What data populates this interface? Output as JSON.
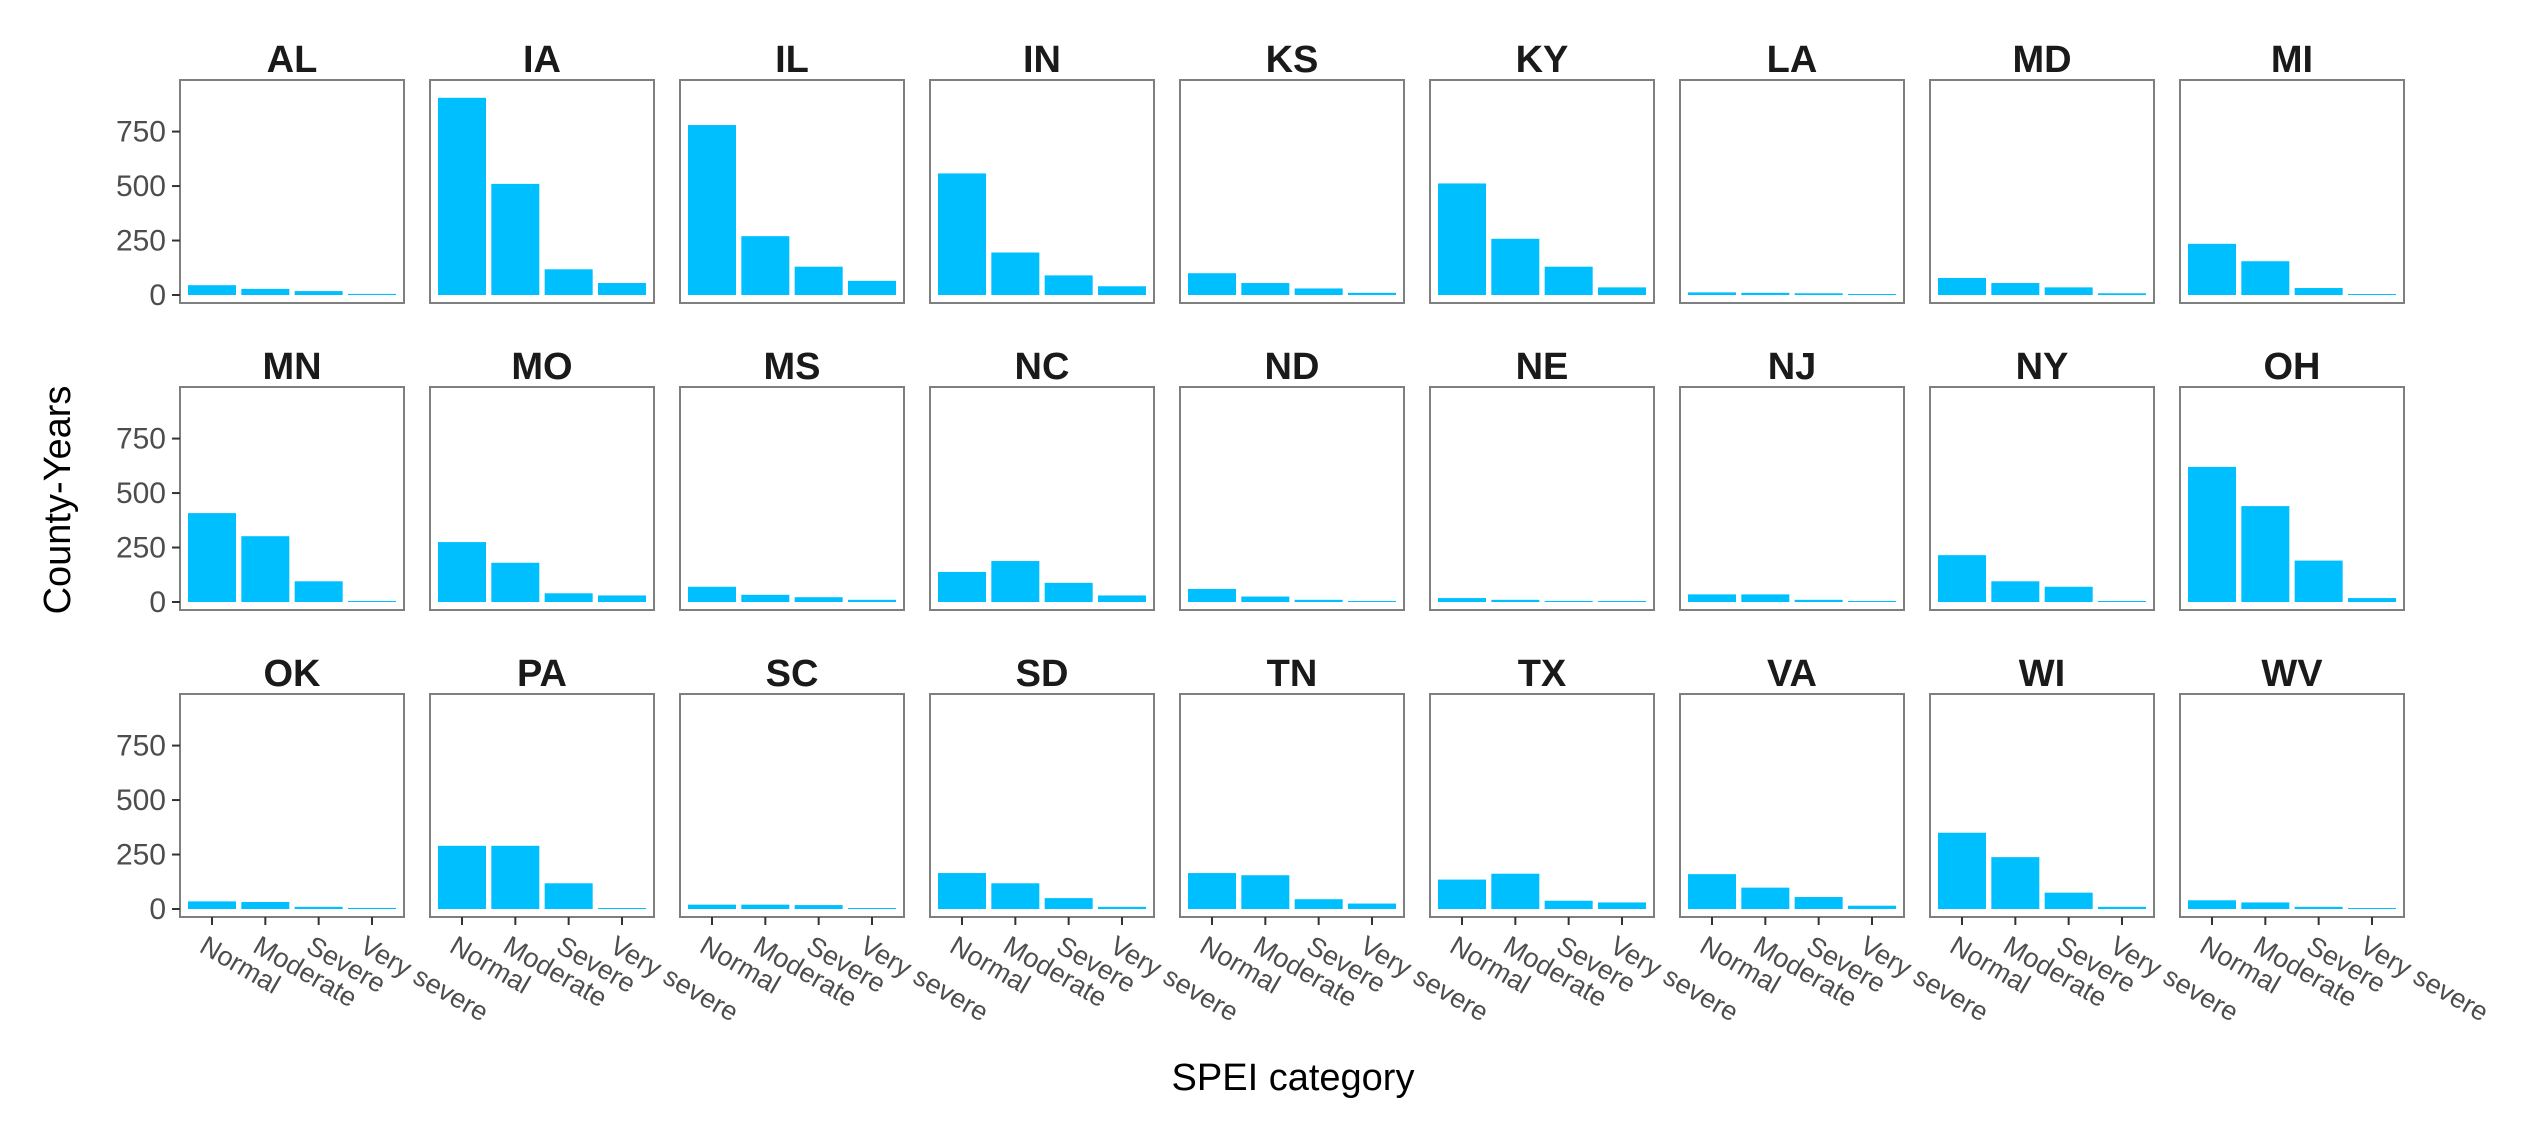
{
  "chart_data": {
    "type": "bar",
    "layout": "facet-grid",
    "facet_cols": 9,
    "xlabel": "SPEI category",
    "ylabel": "County-Years",
    "categories": [
      "Normal",
      "Moderate",
      "Severe",
      "Very severe"
    ],
    "ylim": [
      0,
      950
    ],
    "yticks": [
      0,
      250,
      500,
      750
    ],
    "bar_color": "#00BFFF",
    "grid": false,
    "panels": [
      {
        "state": "AL",
        "values": [
          45,
          28,
          18,
          5
        ]
      },
      {
        "state": "IA",
        "values": [
          905,
          510,
          118,
          55
        ]
      },
      {
        "state": "IL",
        "values": [
          780,
          270,
          130,
          65
        ]
      },
      {
        "state": "IN",
        "values": [
          558,
          195,
          90,
          40
        ]
      },
      {
        "state": "KS",
        "values": [
          100,
          55,
          30,
          10
        ]
      },
      {
        "state": "KY",
        "values": [
          512,
          258,
          130,
          35
        ]
      },
      {
        "state": "LA",
        "values": [
          12,
          10,
          8,
          2
        ]
      },
      {
        "state": "MD",
        "values": [
          78,
          55,
          35,
          8
        ]
      },
      {
        "state": "MI",
        "values": [
          235,
          155,
          32,
          4
        ]
      },
      {
        "state": "MN",
        "values": [
          408,
          302,
          95,
          3
        ]
      },
      {
        "state": "MO",
        "values": [
          275,
          180,
          40,
          30
        ]
      },
      {
        "state": "MS",
        "values": [
          70,
          33,
          22,
          10
        ]
      },
      {
        "state": "NC",
        "values": [
          138,
          188,
          88,
          30
        ]
      },
      {
        "state": "ND",
        "values": [
          60,
          25,
          10,
          2
        ]
      },
      {
        "state": "NE",
        "values": [
          18,
          10,
          5,
          2
        ]
      },
      {
        "state": "NJ",
        "values": [
          35,
          35,
          10,
          3
        ]
      },
      {
        "state": "NY",
        "values": [
          215,
          95,
          70,
          3
        ]
      },
      {
        "state": "OH",
        "values": [
          620,
          440,
          190,
          18
        ]
      },
      {
        "state": "OK",
        "values": [
          35,
          32,
          10,
          5
        ]
      },
      {
        "state": "PA",
        "values": [
          290,
          290,
          118,
          3
        ]
      },
      {
        "state": "SC",
        "values": [
          20,
          20,
          18,
          3
        ]
      },
      {
        "state": "SD",
        "values": [
          165,
          118,
          50,
          10
        ]
      },
      {
        "state": "TN",
        "values": [
          165,
          155,
          45,
          25
        ]
      },
      {
        "state": "TX",
        "values": [
          135,
          162,
          38,
          30
        ]
      },
      {
        "state": "VA",
        "values": [
          160,
          98,
          55,
          15
        ]
      },
      {
        "state": "WI",
        "values": [
          350,
          238,
          75,
          10
        ]
      },
      {
        "state": "WV",
        "values": [
          40,
          30,
          10,
          3
        ]
      }
    ]
  }
}
